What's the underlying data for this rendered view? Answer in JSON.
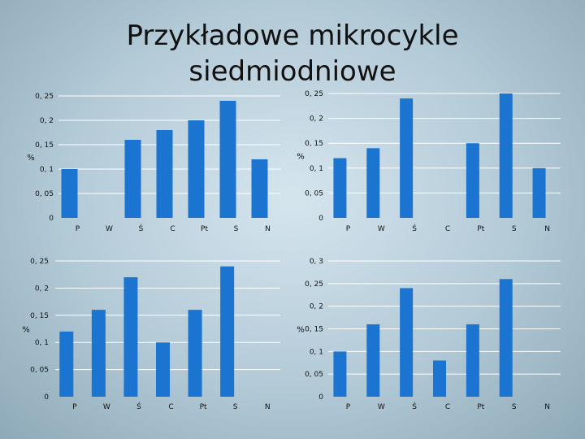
{
  "slide": {
    "title_line1": "Przykładowe mikrocykle",
    "title_line2": "siedmiodniowe"
  },
  "colors": {
    "bar": "#1a74d0",
    "grid": "#ffffff",
    "text": "#111111"
  },
  "chart_data": [
    {
      "type": "bar",
      "categories": [
        "P",
        "W",
        "Ś",
        "C",
        "Pt",
        "S",
        "N"
      ],
      "values": [
        0.1,
        0,
        0.16,
        0.18,
        0.2,
        0.24,
        0.12
      ],
      "ylabel": "%",
      "ylim": [
        0,
        0.25
      ],
      "yticks": [
        0,
        0.05,
        0.1,
        0.15,
        0.2,
        0.25
      ],
      "ytick_labels": [
        "0",
        "0, 05",
        "0, 1",
        "0, 15",
        "0, 2",
        "0, 25"
      ],
      "grid": true
    },
    {
      "type": "bar",
      "categories": [
        "P",
        "W",
        "Ś",
        "C",
        "Pt",
        "S",
        "N"
      ],
      "values": [
        0.12,
        0.14,
        0.24,
        0,
        0.15,
        0.25,
        0.1
      ],
      "ylabel": "%",
      "ylim": [
        0,
        0.25
      ],
      "yticks": [
        0,
        0.05,
        0.1,
        0.15,
        0.2,
        0.25
      ],
      "ytick_labels": [
        "0",
        "0, 05",
        "0, 1",
        "0, 15",
        "0, 2",
        "0, 25"
      ],
      "grid": true
    },
    {
      "type": "bar",
      "categories": [
        "P",
        "W",
        "Ś",
        "C",
        "Pt",
        "S",
        "N"
      ],
      "values": [
        0.12,
        0.16,
        0.22,
        0.1,
        0.16,
        0.24,
        0
      ],
      "ylabel": "%",
      "ylim": [
        0,
        0.25
      ],
      "yticks": [
        0,
        0.05,
        0.1,
        0.15,
        0.2,
        0.25
      ],
      "ytick_labels": [
        "0",
        "0, 05",
        "0, 1",
        "0, 15",
        "0, 2",
        "0, 25"
      ],
      "grid": true
    },
    {
      "type": "bar",
      "categories": [
        "P",
        "W",
        "Ś",
        "C",
        "Pt",
        "S",
        "N"
      ],
      "values": [
        0.1,
        0.16,
        0.24,
        0.08,
        0.16,
        0.26,
        0
      ],
      "ylabel": "%",
      "ylim": [
        0,
        0.3
      ],
      "yticks": [
        0,
        0.05,
        0.1,
        0.15,
        0.2,
        0.25,
        0.3
      ],
      "ytick_labels": [
        "0",
        "0, 05",
        "0, 1",
        "0, 15",
        "0, 2",
        "0, 25",
        "0, 3"
      ],
      "grid": true
    }
  ]
}
